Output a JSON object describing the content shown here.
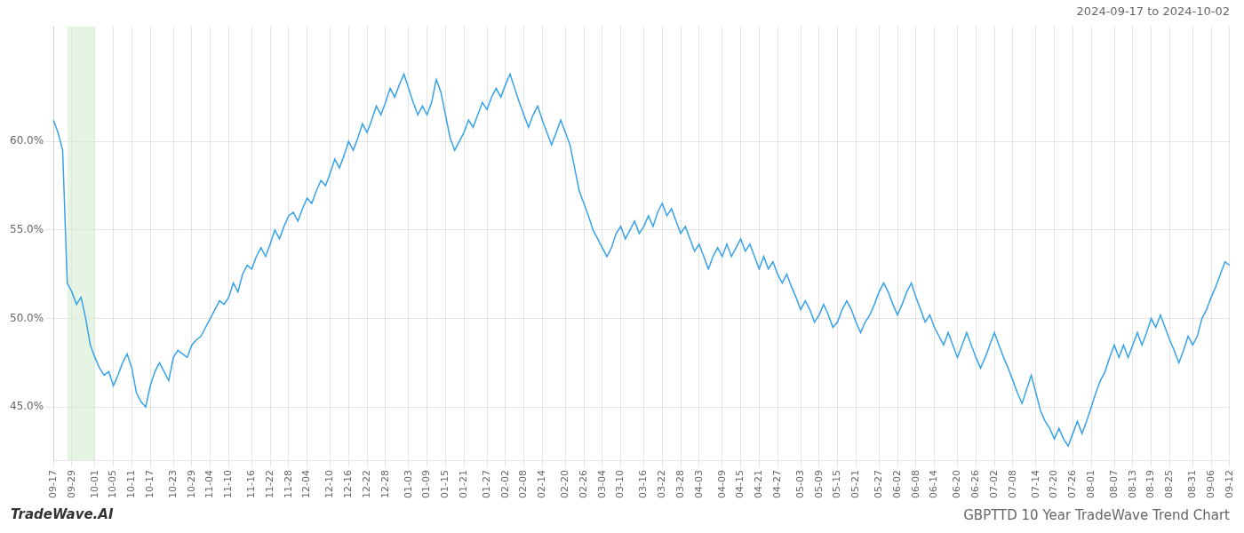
{
  "chart_data": {
    "type": "line",
    "title": "GBPTTD 10 Year TradeWave Trend Chart",
    "subtitle": "2024-09-17 to 2024-10-02",
    "annotations": [
      {
        "text": "TradeWave.AI"
      }
    ],
    "categories": [
      "09-17",
      null,
      null,
      null,
      "09-29",
      null,
      null,
      null,
      null,
      "10-01",
      null,
      null,
      null,
      "10-05",
      null,
      null,
      null,
      "10-11",
      null,
      null,
      null,
      "10-17",
      null,
      null,
      null,
      null,
      "10-23",
      null,
      null,
      null,
      "10-29",
      null,
      null,
      null,
      "11-04",
      null,
      null,
      null,
      "11-10",
      null,
      null,
      null,
      null,
      "11-16",
      null,
      null,
      null,
      "11-22",
      null,
      null,
      null,
      "11-28",
      null,
      null,
      null,
      "12-04",
      null,
      null,
      null,
      null,
      "12-10",
      null,
      null,
      null,
      "12-16",
      null,
      null,
      null,
      "12-22",
      null,
      null,
      null,
      "12-28",
      null,
      null,
      null,
      null,
      "01-03",
      null,
      null,
      null,
      "01-09",
      null,
      null,
      null,
      "01-15",
      null,
      null,
      null,
      "01-21",
      null,
      null,
      null,
      null,
      "01-27",
      null,
      null,
      null,
      "02-02",
      null,
      null,
      null,
      "02-08",
      null,
      null,
      null,
      "02-14",
      null,
      null,
      null,
      null,
      "02-20",
      null,
      null,
      null,
      "02-26",
      null,
      null,
      null,
      "03-04",
      null,
      null,
      null,
      "03-10",
      null,
      null,
      null,
      null,
      "03-16",
      null,
      null,
      null,
      "03-22",
      null,
      null,
      null,
      "03-28",
      null,
      null,
      null,
      "04-03",
      null,
      null,
      null,
      null,
      "04-09",
      null,
      null,
      null,
      "04-15",
      null,
      null,
      null,
      "04-21",
      null,
      null,
      null,
      "04-27",
      null,
      null,
      null,
      null,
      "05-03",
      null,
      null,
      null,
      "05-09",
      null,
      null,
      null,
      "05-15",
      null,
      null,
      null,
      "05-21",
      null,
      null,
      null,
      null,
      "05-27",
      null,
      null,
      null,
      "06-02",
      null,
      null,
      null,
      "06-08",
      null,
      null,
      null,
      "06-14",
      null,
      null,
      null,
      null,
      "06-20",
      null,
      null,
      null,
      "06-26",
      null,
      null,
      null,
      "07-02",
      null,
      null,
      null,
      "07-08",
      null,
      null,
      null,
      null,
      "07-14",
      null,
      null,
      null,
      "07-20",
      null,
      null,
      null,
      "07-26",
      null,
      null,
      null,
      "08-01",
      null,
      null,
      null,
      null,
      "08-07",
      null,
      null,
      null,
      "08-13",
      null,
      null,
      null,
      "08-19",
      null,
      null,
      null,
      "08-25",
      null,
      null,
      null,
      null,
      "08-31",
      null,
      null,
      null,
      "09-06",
      null,
      null,
      null,
      "09-12"
    ],
    "values": [
      61.2,
      60.5,
      59.5,
      52.0,
      51.5,
      50.8,
      51.2,
      50.0,
      48.5,
      47.8,
      47.2,
      46.8,
      47.0,
      46.2,
      46.8,
      47.5,
      48.0,
      47.2,
      45.8,
      45.3,
      45.0,
      46.2,
      47.0,
      47.5,
      47.0,
      46.5,
      47.8,
      48.2,
      48.0,
      47.8,
      48.5,
      48.8,
      49.0,
      49.5,
      50.0,
      50.5,
      51.0,
      50.8,
      51.2,
      52.0,
      51.5,
      52.5,
      53.0,
      52.8,
      53.5,
      54.0,
      53.5,
      54.2,
      55.0,
      54.5,
      55.2,
      55.8,
      56.0,
      55.5,
      56.2,
      56.8,
      56.5,
      57.2,
      57.8,
      57.5,
      58.2,
      59.0,
      58.5,
      59.2,
      60.0,
      59.5,
      60.2,
      61.0,
      60.5,
      61.2,
      62.0,
      61.5,
      62.2,
      63.0,
      62.5,
      63.2,
      63.8,
      63.0,
      62.2,
      61.5,
      62.0,
      61.5,
      62.2,
      63.5,
      62.8,
      61.5,
      60.2,
      59.5,
      60.0,
      60.5,
      61.2,
      60.8,
      61.5,
      62.2,
      61.8,
      62.5,
      63.0,
      62.5,
      63.2,
      63.8,
      63.0,
      62.2,
      61.5,
      60.8,
      61.5,
      62.0,
      61.2,
      60.5,
      59.8,
      60.5,
      61.2,
      60.5,
      59.8,
      58.5,
      57.2,
      56.5,
      55.8,
      55.0,
      54.5,
      54.0,
      53.5,
      54.0,
      54.8,
      55.2,
      54.5,
      55.0,
      55.5,
      54.8,
      55.2,
      55.8,
      55.2,
      56.0,
      56.5,
      55.8,
      56.2,
      55.5,
      54.8,
      55.2,
      54.5,
      53.8,
      54.2,
      53.5,
      52.8,
      53.5,
      54.0,
      53.5,
      54.2,
      53.5,
      54.0,
      54.5,
      53.8,
      54.2,
      53.5,
      52.8,
      53.5,
      52.8,
      53.2,
      52.5,
      52.0,
      52.5,
      51.8,
      51.2,
      50.5,
      51.0,
      50.5,
      49.8,
      50.2,
      50.8,
      50.2,
      49.5,
      49.8,
      50.5,
      51.0,
      50.5,
      49.8,
      49.2,
      49.8,
      50.2,
      50.8,
      51.5,
      52.0,
      51.5,
      50.8,
      50.2,
      50.8,
      51.5,
      52.0,
      51.2,
      50.5,
      49.8,
      50.2,
      49.5,
      49.0,
      48.5,
      49.2,
      48.5,
      47.8,
      48.5,
      49.2,
      48.5,
      47.8,
      47.2,
      47.8,
      48.5,
      49.2,
      48.5,
      47.8,
      47.2,
      46.5,
      45.8,
      45.2,
      46.0,
      46.8,
      45.8,
      44.8,
      44.2,
      43.8,
      43.2,
      43.8,
      43.2,
      42.8,
      43.5,
      44.2,
      43.5,
      44.2,
      45.0,
      45.8,
      46.5,
      47.0,
      47.8,
      48.5,
      47.8,
      48.5,
      47.8,
      48.5,
      49.2,
      48.5,
      49.2,
      50.0,
      49.5,
      50.2,
      49.5,
      48.8,
      48.2,
      47.5,
      48.2,
      49.0,
      48.5,
      49.0,
      50.0,
      50.5,
      51.2,
      51.8,
      52.5,
      53.2,
      53.0
    ],
    "shade": {
      "from": 3,
      "to": 9,
      "color": "#d6ecd2"
    },
    "ylim": [
      42.0,
      66.5
    ],
    "yticks": [
      {
        "value": 45.0,
        "label": "45.0%"
      },
      {
        "value": 50.0,
        "label": "50.0%"
      },
      {
        "value": 55.0,
        "label": "55.0%"
      },
      {
        "value": 60.0,
        "label": "60.0%"
      }
    ],
    "grid": true
  }
}
